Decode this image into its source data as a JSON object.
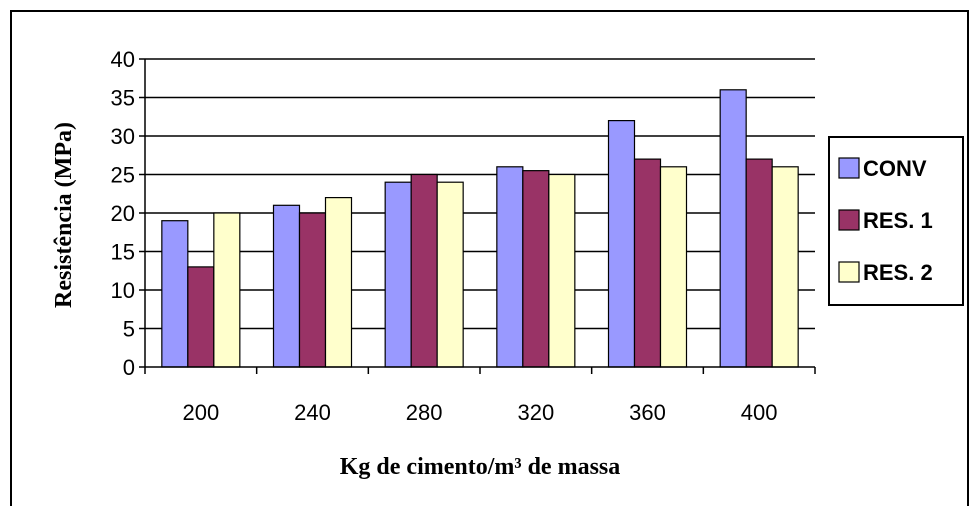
{
  "chart_data": {
    "type": "bar",
    "title": "",
    "xlabel": "Kg de cimento/m³ de massa",
    "ylabel": "Resistência (MPa)",
    "ylim": [
      0,
      40
    ],
    "yticks": [
      "0",
      "5",
      "10",
      "15",
      "20",
      "25",
      "30",
      "35",
      "40"
    ],
    "categories": [
      "200",
      "240",
      "280",
      "320",
      "360",
      "400"
    ],
    "series": [
      {
        "name": "CONV",
        "color": "#9999ff",
        "values": [
          19,
          21,
          24,
          26,
          32,
          36
        ]
      },
      {
        "name": "RES. 1",
        "color": "#993366",
        "values": [
          13,
          20,
          25,
          25.5,
          27,
          27
        ]
      },
      {
        "name": "RES. 2",
        "color": "#ffffcc",
        "values": [
          20,
          22,
          24,
          25,
          26,
          26
        ]
      }
    ],
    "grid": "horizontal",
    "legend_position": "right"
  }
}
